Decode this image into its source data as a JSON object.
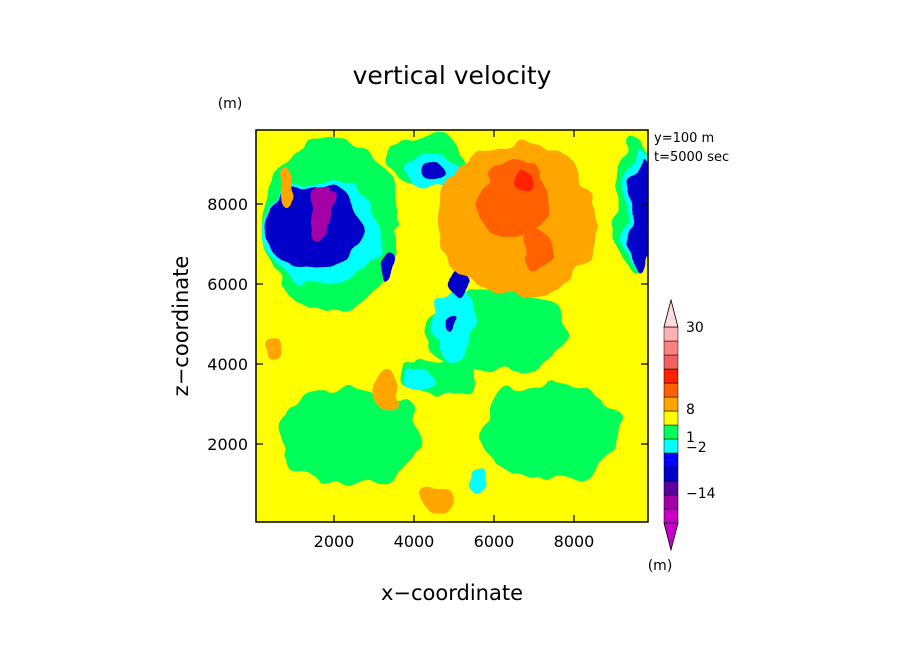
{
  "chart_data": {
    "type": "contour",
    "title": "vertical velocity",
    "xlabel": "x−coordinate",
    "ylabel": "z−coordinate",
    "x_unit": "(m)",
    "y_unit": "(m)",
    "info_lines": [
      "y=100 m",
      "t=5000 sec"
    ],
    "x_ticks": [
      2000,
      4000,
      6000,
      8000
    ],
    "y_ticks": [
      2000,
      4000,
      6000,
      8000
    ],
    "x_tick_labels": [
      "2000",
      "4000",
      "6000",
      "8000"
    ],
    "y_tick_labels": [
      "2000",
      "4000",
      "6000",
      "8000"
    ],
    "xlim": [
      50,
      9850
    ],
    "ylim": [
      50,
      9850
    ],
    "grid": false,
    "background_level_color": "#ffff00",
    "level_colors": {
      "-3": "#a500a5",
      "-2": "#0000c8",
      "-1": "#00ffff",
      "0": "#00ff58",
      "1": "#ffff00",
      "2": "#ffa500",
      "3": "#ff6000",
      "4": "#ff2000"
    },
    "regions": [
      {
        "level": 0,
        "cx": 1900,
        "cz": 7500,
        "rx": 1700,
        "rz": 2200
      },
      {
        "level": 0,
        "cx": 6100,
        "cz": 4800,
        "rx": 1800,
        "rz": 1000
      },
      {
        "level": 0,
        "cx": 2400,
        "cz": 2200,
        "rx": 1800,
        "rz": 1200
      },
      {
        "level": 0,
        "cx": 7400,
        "cz": 2300,
        "rx": 1700,
        "rz": 1200
      },
      {
        "level": 0,
        "cx": 4600,
        "cz": 3700,
        "rx": 900,
        "rz": 500
      },
      {
        "level": 0,
        "cx": 4300,
        "cz": 9100,
        "rx": 1000,
        "rz": 600
      },
      {
        "level": 0,
        "cx": 9500,
        "cz": 8000,
        "rx": 450,
        "rz": 1700
      },
      {
        "level": -1,
        "cx": 1700,
        "cz": 7300,
        "rx": 1500,
        "rz": 1300
      },
      {
        "level": -1,
        "cx": 4500,
        "cz": 8800,
        "rx": 700,
        "rz": 500
      },
      {
        "level": -1,
        "cx": 5000,
        "cz": 5000,
        "rx": 500,
        "rz": 900
      },
      {
        "level": -1,
        "cx": 4100,
        "cz": 3600,
        "rx": 300,
        "rz": 350
      },
      {
        "level": -1,
        "cx": 5600,
        "cz": 1100,
        "rx": 250,
        "rz": 350
      },
      {
        "level": -1,
        "cx": 9600,
        "cz": 7900,
        "rx": 350,
        "rz": 1500
      },
      {
        "level": -2,
        "cx": 1500,
        "cz": 7400,
        "rx": 1200,
        "rz": 1100
      },
      {
        "level": -2,
        "cx": 4500,
        "cz": 8800,
        "rx": 400,
        "rz": 350
      },
      {
        "level": -2,
        "cx": 5100,
        "cz": 6000,
        "rx": 280,
        "rz": 350
      },
      {
        "level": -2,
        "cx": 3300,
        "cz": 6500,
        "rx": 200,
        "rz": 350
      },
      {
        "level": -2,
        "cx": 5000,
        "cz": 5000,
        "rx": 120,
        "rz": 200
      },
      {
        "level": -2,
        "cx": 9650,
        "cz": 7700,
        "rx": 250,
        "rz": 1400
      },
      {
        "level": -3,
        "cx": 1700,
        "cz": 7800,
        "rx": 350,
        "rz": 700
      },
      {
        "level": 2,
        "cx": 6600,
        "cz": 7600,
        "rx": 2000,
        "rz": 1900
      },
      {
        "level": 2,
        "cx": 3300,
        "cz": 3300,
        "rx": 300,
        "rz": 450
      },
      {
        "level": 2,
        "cx": 4600,
        "cz": 600,
        "rx": 500,
        "rz": 350
      },
      {
        "level": 2,
        "cx": 800,
        "cz": 8500,
        "rx": 200,
        "rz": 500
      },
      {
        "level": 2,
        "cx": 500,
        "cz": 4300,
        "rx": 250,
        "rz": 250
      },
      {
        "level": 3,
        "cx": 6500,
        "cz": 8100,
        "rx": 900,
        "rz": 1000
      },
      {
        "level": 3,
        "cx": 7100,
        "cz": 6800,
        "rx": 400,
        "rz": 550
      },
      {
        "level": 4,
        "cx": 6800,
        "cz": 8600,
        "rx": 250,
        "rz": 300
      }
    ],
    "colorbar": {
      "segments": [
        {
          "color": "#c800c8"
        },
        {
          "color": "#a500a5"
        },
        {
          "color": "#5a00a0"
        },
        {
          "color": "#0000c8"
        },
        {
          "color": "#0000ff"
        },
        {
          "color": "#00ffff"
        },
        {
          "color": "#00ff58"
        },
        {
          "color": "#ffff00"
        },
        {
          "color": "#ffa500"
        },
        {
          "color": "#ff6000"
        },
        {
          "color": "#ff2000"
        },
        {
          "color": "#f06060"
        },
        {
          "color": "#ff8080"
        },
        {
          "color": "#ffb0b0"
        }
      ],
      "low_arrow_color": "#c800c8",
      "high_arrow_color": "#ffdada",
      "labels": [
        "30",
        "8",
        "1",
        "−2",
        "−14"
      ],
      "label_segment_index": [
        12,
        9,
        7,
        6,
        2
      ],
      "unit": "(m)"
    }
  }
}
